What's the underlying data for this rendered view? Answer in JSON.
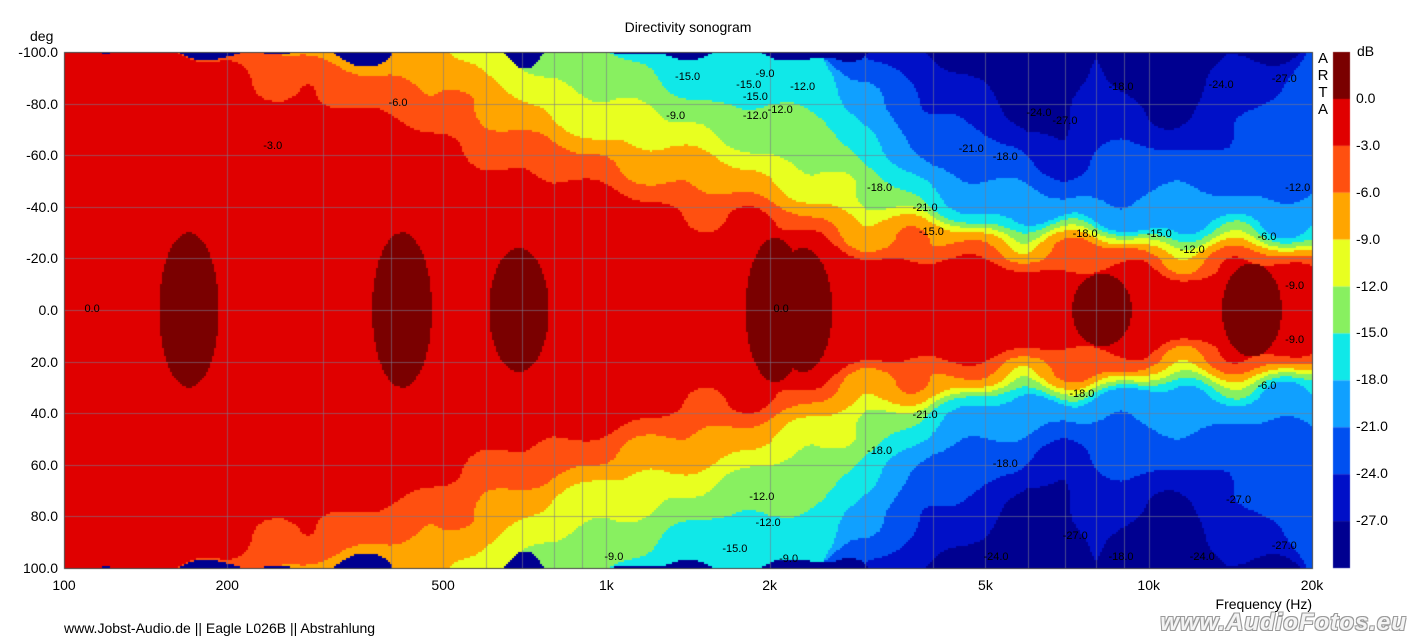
{
  "chart_data": {
    "type": "heatmap",
    "title": "Directivity sonogram",
    "xlabel": "Frequency (Hz)",
    "ylabel": "deg",
    "x_scale": "log",
    "xlim": [
      100,
      20000
    ],
    "ylim": [
      -100,
      100
    ],
    "x_ticks": [
      {
        "value": 100,
        "label": "100"
      },
      {
        "value": 200,
        "label": "200"
      },
      {
        "value": 500,
        "label": "500"
      },
      {
        "value": 1000,
        "label": "1k"
      },
      {
        "value": 2000,
        "label": "2k"
      },
      {
        "value": 5000,
        "label": "5k"
      },
      {
        "value": 10000,
        "label": "10k"
      },
      {
        "value": 20000,
        "label": "20k"
      }
    ],
    "y_ticks": [
      "-100.0",
      "-80.0",
      "-60.0",
      "-40.0",
      "-20.0",
      "0.0",
      "20.0",
      "40.0",
      "60.0",
      "80.0",
      "100.0"
    ],
    "grid": true,
    "colorbar": {
      "unit": "dB",
      "levels": [
        "0.0",
        "-3.0",
        "-6.0",
        "-9.0",
        "-12.0",
        "-15.0",
        "-18.0",
        "-21.0",
        "-24.0",
        "-27.0"
      ],
      "colors": [
        "#7a0000",
        "#e00000",
        "#ff5010",
        "#ffa500",
        "#e8ff20",
        "#88f060",
        "#10e8e8",
        "#10a0ff",
        "#0050f0",
        "#0010c8",
        "#000090"
      ]
    },
    "beamwidth_contours_deg_by_level": {
      "freqs_hz": [
        100,
        150,
        200,
        250,
        300,
        400,
        500,
        600,
        700,
        800,
        1000,
        1300,
        1600,
        2000,
        2500,
        3000,
        4000,
        5000,
        6000,
        7000,
        8000,
        9000,
        10000,
        12000,
        14000,
        16000,
        20000
      ],
      "-3": [
        100,
        100,
        98,
        85,
        80,
        75,
        68,
        60,
        55,
        50,
        46,
        40,
        36,
        32,
        28,
        22,
        20,
        18,
        18,
        17,
        17,
        16,
        16,
        16,
        15,
        15,
        15
      ],
      "-6": [
        100,
        100,
        100,
        100,
        95,
        92,
        85,
        72,
        66,
        62,
        58,
        52,
        46,
        40,
        34,
        28,
        25,
        24,
        24,
        22,
        22,
        22,
        20,
        20,
        20,
        20,
        20
      ],
      "-9": [
        100,
        100,
        100,
        100,
        100,
        100,
        100,
        90,
        80,
        74,
        68,
        62,
        56,
        50,
        44,
        36,
        30,
        28,
        28,
        26,
        25,
        24,
        24,
        24,
        24,
        24,
        24
      ],
      "-12": [
        100,
        100,
        100,
        100,
        100,
        100,
        100,
        100,
        100,
        92,
        80,
        72,
        68,
        62,
        54,
        42,
        34,
        31,
        30,
        29,
        28,
        28,
        28,
        27,
        27,
        27,
        27
      ],
      "-15": [
        100,
        100,
        100,
        100,
        100,
        100,
        100,
        100,
        100,
        100,
        100,
        88,
        82,
        80,
        72,
        52,
        38,
        34,
        33,
        32,
        31,
        31,
        31,
        30,
        30,
        30,
        30
      ],
      "-18": [
        100,
        100,
        100,
        100,
        100,
        100,
        100,
        100,
        100,
        100,
        100,
        100,
        100,
        100,
        100,
        70,
        46,
        40,
        36,
        34,
        34,
        34,
        34,
        33,
        33,
        33,
        33
      ],
      "-21": [
        100,
        100,
        100,
        100,
        100,
        100,
        100,
        100,
        100,
        100,
        100,
        100,
        100,
        100,
        100,
        90,
        58,
        50,
        44,
        40,
        42,
        44,
        46,
        46,
        46,
        46,
        46
      ],
      "-24": [
        100,
        100,
        100,
        100,
        100,
        100,
        100,
        100,
        100,
        100,
        100,
        100,
        100,
        100,
        100,
        100,
        76,
        66,
        56,
        52,
        60,
        62,
        62,
        62,
        68,
        80,
        100
      ],
      "-27": [
        100,
        100,
        100,
        100,
        100,
        100,
        100,
        100,
        100,
        100,
        100,
        100,
        100,
        100,
        100,
        100,
        100,
        90,
        70,
        70,
        100,
        85,
        75,
        75,
        100,
        100,
        100
      ]
    },
    "contour_labels": [
      {
        "f": 110,
        "deg": 0,
        "text": "0.0"
      },
      {
        "f": 2050,
        "deg": 0,
        "text": "0.0"
      },
      {
        "f": 235,
        "deg": -63,
        "text": "-3.0"
      },
      {
        "f": 400,
        "deg": -80,
        "text": "-6.0"
      },
      {
        "f": 1350,
        "deg": -90,
        "text": "-15.0"
      },
      {
        "f": 1300,
        "deg": -75,
        "text": "-9.0"
      },
      {
        "f": 1750,
        "deg": -87,
        "text": "-15.0"
      },
      {
        "f": 1800,
        "deg": -82,
        "text": "-15.0"
      },
      {
        "f": 1900,
        "deg": -91,
        "text": "-9.0"
      },
      {
        "f": 1800,
        "deg": -75,
        "text": "-12.0"
      },
      {
        "f": 2000,
        "deg": -77,
        "text": "-12.0"
      },
      {
        "f": 2200,
        "deg": -86,
        "text": "-12.0"
      },
      {
        "f": 3050,
        "deg": -47,
        "text": "-18.0"
      },
      {
        "f": 3700,
        "deg": -39,
        "text": "-21.0"
      },
      {
        "f": 3800,
        "deg": -30,
        "text": "-15.0"
      },
      {
        "f": 4500,
        "deg": -62,
        "text": "-21.0"
      },
      {
        "f": 5200,
        "deg": -59,
        "text": "-18.0"
      },
      {
        "f": 6000,
        "deg": -76,
        "text": "-24.0"
      },
      {
        "f": 6700,
        "deg": -73,
        "text": "-27.0"
      },
      {
        "f": 8500,
        "deg": -86,
        "text": "-18.0"
      },
      {
        "f": 7300,
        "deg": -29,
        "text": "-18.0"
      },
      {
        "f": 10000,
        "deg": -29,
        "text": "-15.0"
      },
      {
        "f": 11500,
        "deg": -23,
        "text": "-12.0"
      },
      {
        "f": 13000,
        "deg": -87,
        "text": "-24.0"
      },
      {
        "f": 17000,
        "deg": -89,
        "text": "-27.0"
      },
      {
        "f": 18000,
        "deg": -47,
        "text": "-12.0"
      },
      {
        "f": 16000,
        "deg": -28,
        "text": "-6.0"
      },
      {
        "f": 18000,
        "deg": -9,
        "text": "-9.0"
      },
      {
        "f": 18000,
        "deg": 12,
        "text": "-9.0"
      },
      {
        "f": 16000,
        "deg": 30,
        "text": "-6.0"
      },
      {
        "f": 7200,
        "deg": 33,
        "text": "-18.0"
      },
      {
        "f": 3700,
        "deg": 41,
        "text": "-21.0"
      },
      {
        "f": 3050,
        "deg": 55,
        "text": "-18.0"
      },
      {
        "f": 5200,
        "deg": 60,
        "text": "-18.0"
      },
      {
        "f": 14000,
        "deg": 74,
        "text": "-27.0"
      },
      {
        "f": 7000,
        "deg": 88,
        "text": "-27.0"
      },
      {
        "f": 8500,
        "deg": 96,
        "text": "-18.0"
      },
      {
        "f": 12000,
        "deg": 96,
        "text": "-24.0"
      },
      {
        "f": 5000,
        "deg": 96,
        "text": "-24.0"
      },
      {
        "f": 17000,
        "deg": 92,
        "text": "-27.0"
      },
      {
        "f": 1850,
        "deg": 73,
        "text": "-12.0"
      },
      {
        "f": 1900,
        "deg": 83,
        "text": "-12.0"
      },
      {
        "f": 1650,
        "deg": 93,
        "text": "-15.0"
      },
      {
        "f": 2100,
        "deg": 97,
        "text": "-9.0"
      },
      {
        "f": 1000,
        "deg": 96,
        "text": "-9.0"
      }
    ]
  },
  "arta_label": "ARTA",
  "footer": "www.Jobst-Audio.de  ||  Eagle L026B  ||  Abstrahlung",
  "watermark": {
    "main": "www.AudioFotos",
    "suffix": ".eu"
  }
}
